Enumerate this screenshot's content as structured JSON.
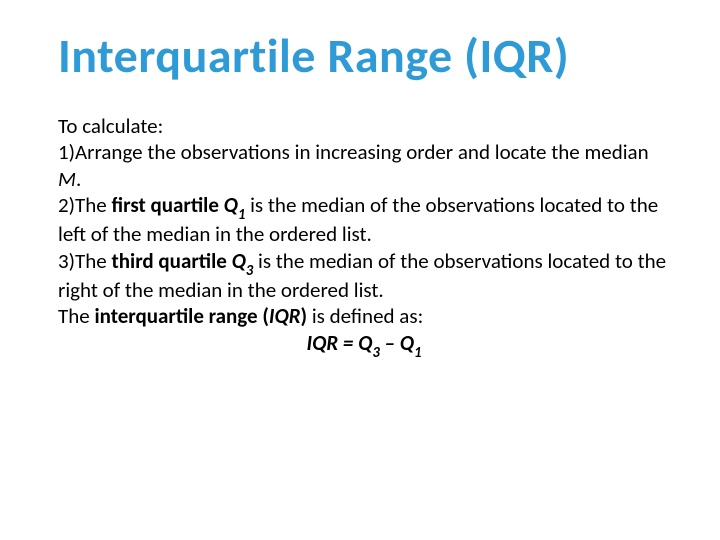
{
  "title": "Interquartile Range (IQR)",
  "intro": "To calculate:",
  "step1_a": "1)Arrange the observations in increasing order and locate the median ",
  "step1_m": "M",
  "step1_b": ".",
  "step2_a": "2)The ",
  "step2_bold1": "first quartile ",
  "step2_q": "Q",
  "step2_sub": "1",
  "step2_b": " is the median of the observations located to the left of the median in the ordered list.",
  "step3_a": "3)The ",
  "step3_bold1": "third quartile ",
  "step3_q": "Q",
  "step3_sub": "3",
  "step3_b": " is the median of the observations located to the right of the median in the ordered list.",
  "def_a": "The ",
  "def_bold": "interquartile range (",
  "def_iqr": "IQR",
  "def_bold2": ")",
  "def_b": " is defined as:",
  "formula_iqr": "IQR = Q",
  "formula_sub3": "3",
  "formula_mid": " – Q",
  "formula_sub1": "1",
  "colors": {
    "title": "#2e9bd6",
    "text": "#000000",
    "background": "#ffffff"
  }
}
